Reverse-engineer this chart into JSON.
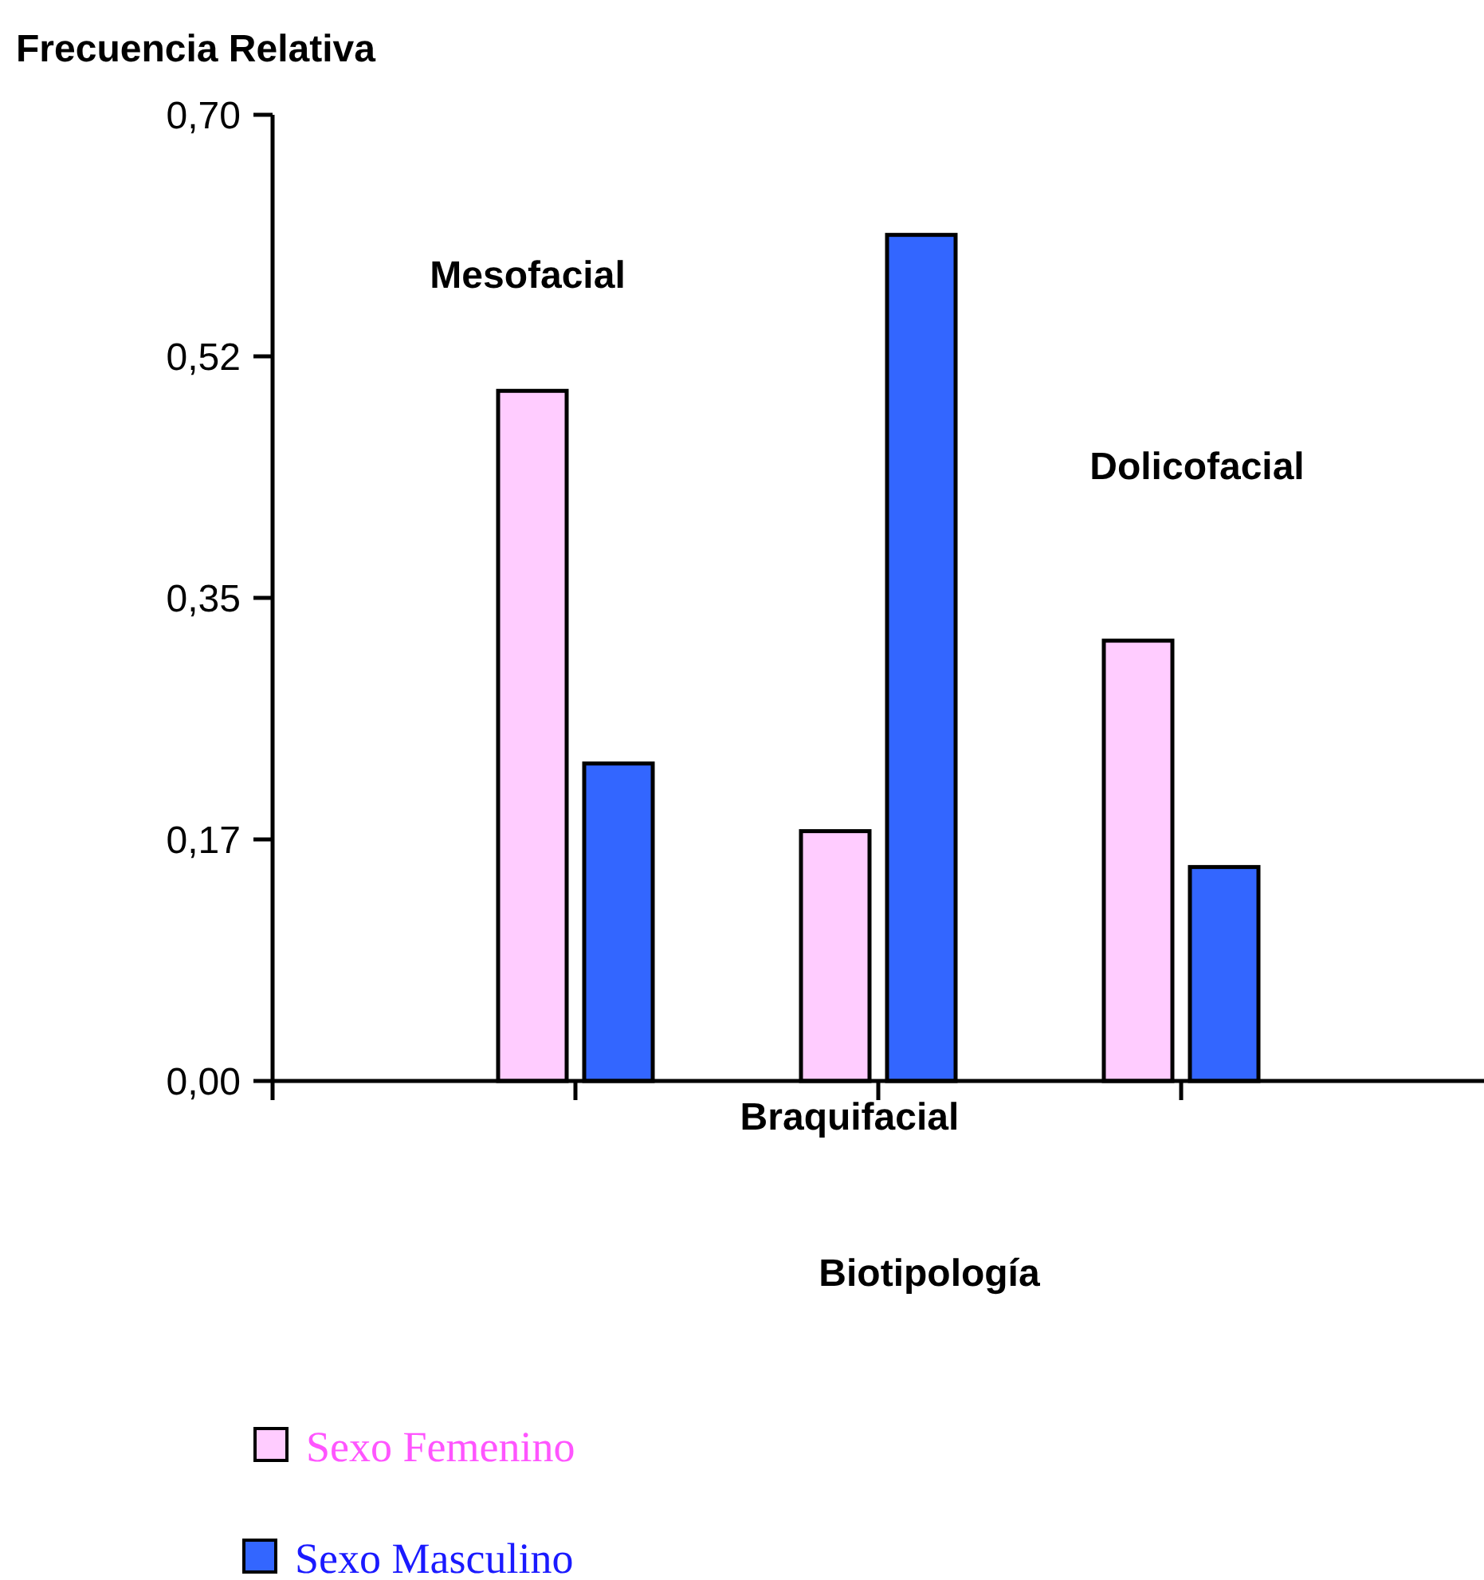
{
  "chart_data": {
    "type": "bar",
    "xlabel": "Biotipología",
    "ylabel": "Frecuencia Relativa",
    "categories": [
      "Mesofacial",
      "Braquifacial",
      "Dolicofacial"
    ],
    "series": [
      {
        "name": "Sexo Femenino",
        "color": "#ffccff",
        "values": [
          0.5,
          0.181,
          0.319
        ]
      },
      {
        "name": "Sexo Masculino",
        "color": "#3366ff",
        "values": [
          0.23,
          0.613,
          0.155
        ]
      }
    ],
    "ylim": [
      0,
      0.7
    ],
    "yticks": [
      {
        "value": 0,
        "label": "0,00"
      },
      {
        "value": 0.175,
        "label": "0,17"
      },
      {
        "value": 0.35,
        "label": "0,35"
      },
      {
        "value": 0.525,
        "label": "0,52"
      },
      {
        "value": 0.7,
        "label": "0,70"
      }
    ],
    "legend": "bottom left"
  }
}
